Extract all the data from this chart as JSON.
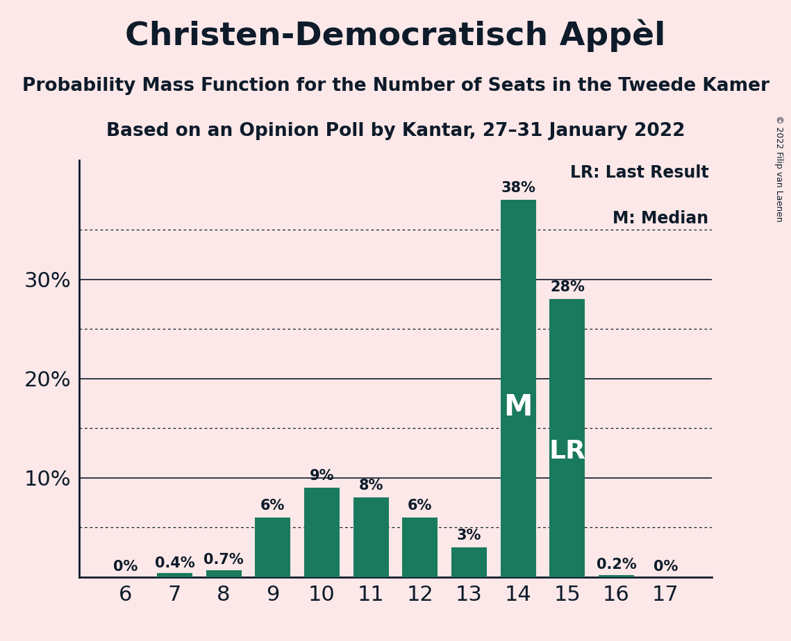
{
  "title": "Christen-Democratisch Appèl",
  "subtitle1": "Probability Mass Function for the Number of Seats in the Tweede Kamer",
  "subtitle2": "Based on an Opinion Poll by Kantar, 27–31 January 2022",
  "copyright": "© 2022 Filip van Laenen",
  "seats": [
    6,
    7,
    8,
    9,
    10,
    11,
    12,
    13,
    14,
    15,
    16,
    17
  ],
  "probabilities": [
    0.0,
    0.4,
    0.7,
    6.0,
    9.0,
    8.0,
    6.0,
    3.0,
    38.0,
    28.0,
    0.2,
    0.0
  ],
  "bar_labels": [
    "0%",
    "0.4%",
    "0.7%",
    "6%",
    "9%",
    "8%",
    "6%",
    "3%",
    "38%",
    "28%",
    "0.2%",
    "0%"
  ],
  "bar_color": "#1a7a5e",
  "background_color": "#fce8e8",
  "text_color": "#0d1b2a",
  "median_seat": 14,
  "lr_seat": 15,
  "ylim_max": 42,
  "solid_yticks": [
    10,
    20,
    30
  ],
  "dotted_yticks": [
    5,
    15,
    25,
    35
  ],
  "ylabel_ticks": [
    10,
    20,
    30
  ],
  "legend_lr": "LR: Last Result",
  "legend_m": "M: Median",
  "bar_width": 0.72
}
